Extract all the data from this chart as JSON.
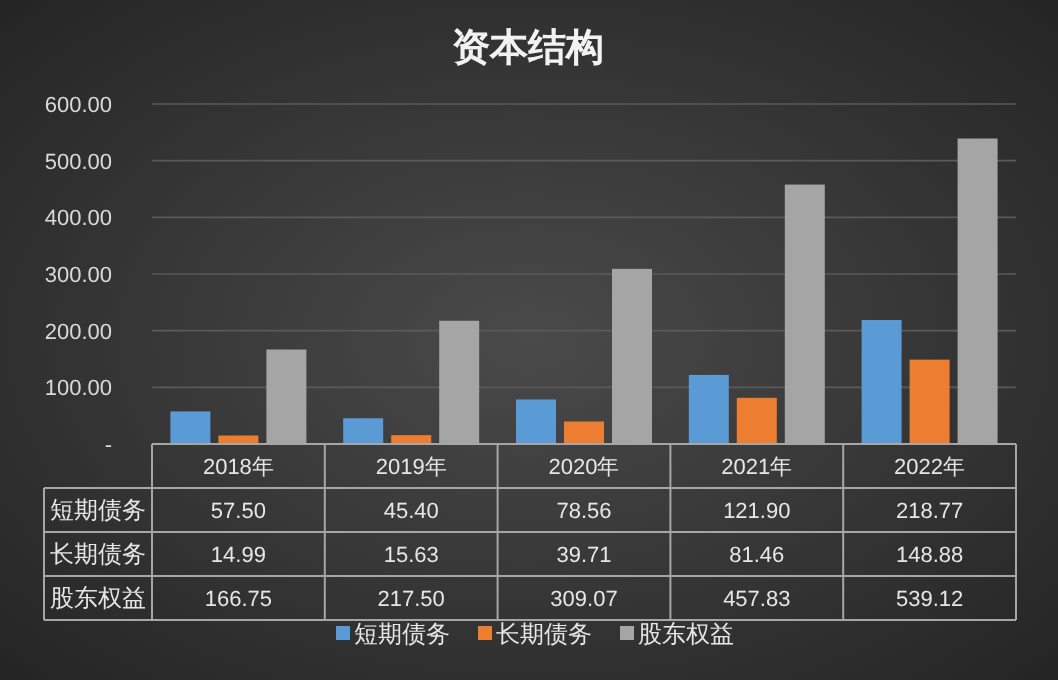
{
  "chart_data": {
    "type": "bar",
    "title": "资本结构",
    "categories": [
      "2018年",
      "2019年",
      "2020年",
      "2021年",
      "2022年"
    ],
    "series": [
      {
        "name": "短期债务",
        "color": "#5b9bd5",
        "values": [
          57.5,
          45.4,
          78.56,
          121.9,
          218.77
        ]
      },
      {
        "name": "长期债务",
        "color": "#ed7d31",
        "values": [
          14.99,
          15.63,
          39.71,
          81.46,
          148.88
        ]
      },
      {
        "name": "股东权益",
        "color": "#a5a5a5",
        "values": [
          166.75,
          217.5,
          309.07,
          457.83,
          539.12
        ]
      }
    ],
    "ylim": [
      0,
      600
    ],
    "yticks": [
      {
        "value": 0,
        "label": "-"
      },
      {
        "value": 100,
        "label": "100.00"
      },
      {
        "value": 200,
        "label": "200.00"
      },
      {
        "value": 300,
        "label": "300.00"
      },
      {
        "value": 400,
        "label": "400.00"
      },
      {
        "value": 500,
        "label": "500.00"
      },
      {
        "value": 600,
        "label": "600.00"
      }
    ],
    "value_labels": [
      [
        "57.50",
        "45.40",
        "78.56",
        "121.90",
        "218.77"
      ],
      [
        "14.99",
        "15.63",
        "39.71",
        "81.46",
        "148.88"
      ],
      [
        "166.75",
        "217.50",
        "309.07",
        "457.83",
        "539.12"
      ]
    ],
    "grid": "y",
    "legend": "bottom"
  }
}
